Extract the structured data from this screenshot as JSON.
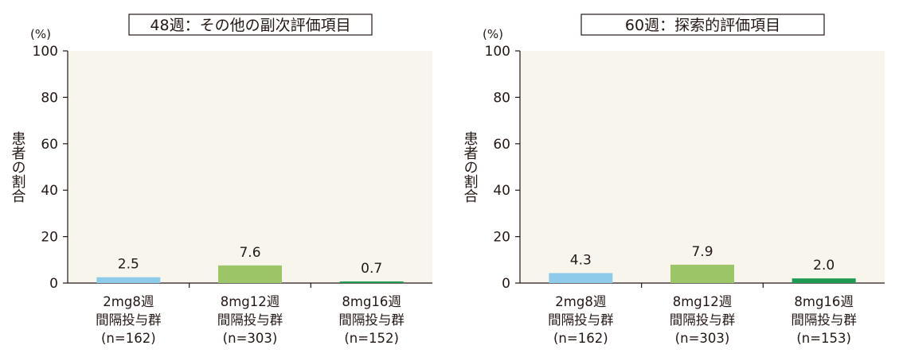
{
  "chart_data": [
    {
      "type": "bar",
      "title": "48週：その他の副次評価項目",
      "unit": "(%)",
      "ylabel": "患者の割合",
      "ylim": [
        0,
        100
      ],
      "yticks": [
        0,
        20,
        40,
        60,
        80,
        100
      ],
      "categories": [
        [
          "2mg8週",
          "間隔投与群",
          "(n=162)"
        ],
        [
          "8mg12週",
          "間隔投与群",
          "(n=303)"
        ],
        [
          "8mg16週",
          "間隔投与群",
          "(n=152)"
        ]
      ],
      "values": [
        2.5,
        7.6,
        0.7
      ],
      "value_labels": [
        "2.5",
        "7.6",
        "0.7"
      ],
      "colors": [
        "#8ecbea",
        "#9bc566",
        "#1f9a52"
      ]
    },
    {
      "type": "bar",
      "title": "60週：探索的評価項目",
      "unit": "(%)",
      "ylabel": "患者の割合",
      "ylim": [
        0,
        100
      ],
      "yticks": [
        0,
        20,
        40,
        60,
        80,
        100
      ],
      "categories": [
        [
          "2mg8週",
          "間隔投与群",
          "(n=162)"
        ],
        [
          "8mg12週",
          "間隔投与群",
          "(n=303)"
        ],
        [
          "8mg16週",
          "間隔投与群",
          "(n=153)"
        ]
      ],
      "values": [
        4.3,
        7.9,
        2.0
      ],
      "value_labels": [
        "4.3",
        "7.9",
        "2.0"
      ],
      "colors": [
        "#8ecbea",
        "#9bc566",
        "#1f9a52"
      ]
    }
  ]
}
